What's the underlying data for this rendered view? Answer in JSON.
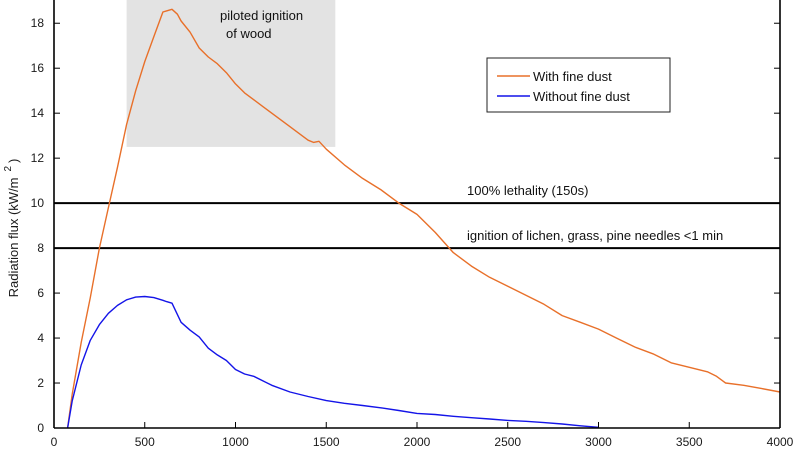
{
  "chart_data": {
    "type": "line",
    "xlim": [
      0,
      4000
    ],
    "ylim": [
      0,
      19.3
    ],
    "x_ticks": [
      0,
      500,
      1000,
      1500,
      2000,
      2500,
      3000,
      3500,
      4000
    ],
    "y_ticks": [
      0,
      2,
      4,
      6,
      8,
      10,
      12,
      14,
      16,
      18
    ],
    "ylabel": "Radiation flux (kW/m",
    "ylabel_sup": "2",
    "ylabel_end": ")",
    "xlabel": "",
    "grid": false,
    "legend": "top-right",
    "series": [
      {
        "name": "With fine dust",
        "color": "#e8702a",
        "x": [
          75,
          100,
          150,
          200,
          250,
          300,
          350,
          400,
          450,
          500,
          550,
          600,
          620,
          650,
          680,
          700,
          750,
          800,
          850,
          900,
          950,
          1000,
          1050,
          1100,
          1150,
          1200,
          1300,
          1400,
          1430,
          1460,
          1500,
          1600,
          1700,
          1800,
          1900,
          2000,
          2100,
          2200,
          2300,
          2400,
          2500,
          2600,
          2700,
          2800,
          2900,
          3000,
          3100,
          3200,
          3300,
          3400,
          3500,
          3600,
          3650,
          3700,
          3800,
          3900,
          4000
        ],
        "y": [
          0,
          1.5,
          3.8,
          5.8,
          8.0,
          9.8,
          11.6,
          13.5,
          15.0,
          16.3,
          17.4,
          18.5,
          18.55,
          18.62,
          18.4,
          18.1,
          17.6,
          16.9,
          16.5,
          16.2,
          15.8,
          15.3,
          14.9,
          14.6,
          14.3,
          14.0,
          13.4,
          12.8,
          12.7,
          12.75,
          12.4,
          11.7,
          11.1,
          10.6,
          10.0,
          9.5,
          8.7,
          7.8,
          7.2,
          6.7,
          6.3,
          5.9,
          5.5,
          5.0,
          4.7,
          4.4,
          4.0,
          3.6,
          3.3,
          2.9,
          2.7,
          2.5,
          2.3,
          2.0,
          1.9,
          1.75,
          1.6
        ]
      },
      {
        "name": "Without fine dust",
        "color": "#1414e8",
        "x": [
          75,
          100,
          150,
          200,
          250,
          300,
          350,
          400,
          450,
          500,
          550,
          600,
          620,
          650,
          700,
          750,
          800,
          850,
          900,
          950,
          1000,
          1050,
          1100,
          1150,
          1200,
          1300,
          1400,
          1500,
          1600,
          1700,
          1800,
          1900,
          2000,
          2100,
          2200,
          2300,
          2400,
          2500,
          2600,
          2700,
          2800,
          2900,
          3000
        ],
        "y": [
          0,
          1.2,
          2.8,
          3.9,
          4.6,
          5.1,
          5.45,
          5.7,
          5.82,
          5.85,
          5.8,
          5.68,
          5.62,
          5.55,
          4.7,
          4.35,
          4.05,
          3.55,
          3.25,
          3.0,
          2.6,
          2.4,
          2.3,
          2.1,
          1.9,
          1.6,
          1.4,
          1.22,
          1.1,
          1.0,
          0.9,
          0.78,
          0.65,
          0.6,
          0.52,
          0.46,
          0.4,
          0.34,
          0.3,
          0.24,
          0.18,
          0.1,
          0.03
        ]
      }
    ],
    "thresholds": [
      {
        "y": 10,
        "label": "100% lethality (150s)"
      },
      {
        "y": 8,
        "label": "ignition of lichen, grass, pine needles <1 min"
      }
    ],
    "shaded_region": {
      "x0": 400,
      "x1": 1550,
      "y0": 12.5,
      "y1": 19.3,
      "label_line1": "piloted ignition",
      "label_line2": "of wood"
    }
  }
}
